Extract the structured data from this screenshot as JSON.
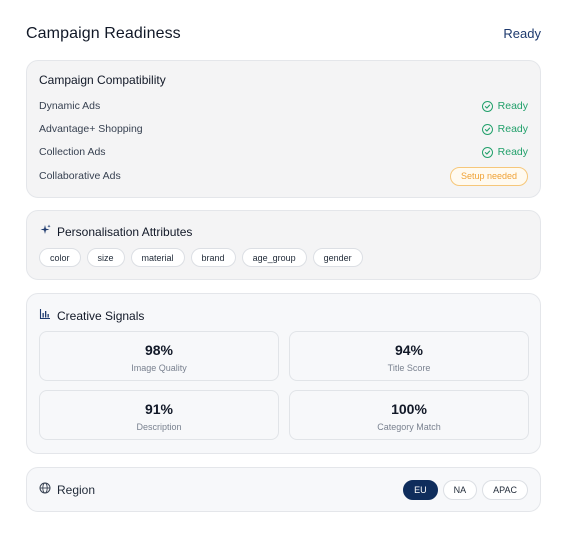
{
  "header": {
    "title": "Campaign Readiness",
    "status": "Ready"
  },
  "compatibility": {
    "title": "Campaign Compatibility",
    "rows": [
      {
        "label": "Dynamic Ads",
        "status": "Ready"
      },
      {
        "label": "Advantage+ Shopping",
        "status": "Ready"
      },
      {
        "label": "Collection Ads",
        "status": "Ready"
      },
      {
        "label": "Collaborative Ads",
        "status": "Setup needed"
      }
    ]
  },
  "attributes": {
    "title": "Personalisation Attributes",
    "chips": [
      "color",
      "size",
      "material",
      "brand",
      "age_group",
      "gender"
    ]
  },
  "signals": {
    "title": "Creative Signals",
    "metrics": [
      {
        "value": "98%",
        "label": "Image Quality"
      },
      {
        "value": "94%",
        "label": "Title Score"
      },
      {
        "value": "91%",
        "label": "Description"
      },
      {
        "value": "100%",
        "label": "Category Match"
      }
    ]
  },
  "region": {
    "label": "Region",
    "options": [
      "EU",
      "NA",
      "APAC"
    ],
    "selected": "EU"
  },
  "colors": {
    "ready": "#22a06b",
    "warning": "#f0a235",
    "accent": "#0f2d5c"
  },
  "icons": {
    "compat_ok": "check-circle-icon",
    "attributes": "sparkle-icon",
    "signals": "bar-chart-icon",
    "region": "globe-icon"
  }
}
